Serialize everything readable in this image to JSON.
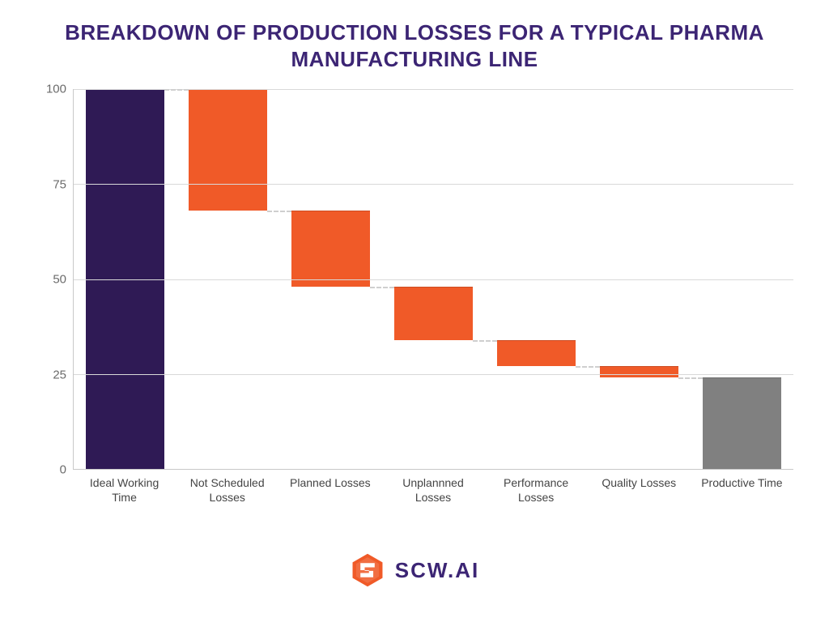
{
  "title": "BREAKDOWN OF PRODUCTION LOSSES FOR A TYPICAL PHARMA MANUFACTURING LINE",
  "title_color": "#3c2574",
  "title_fontsize": 26,
  "chart": {
    "type": "waterfall",
    "ylim": [
      0,
      100
    ],
    "ytick_step": 25,
    "yticks": [
      0,
      25,
      50,
      75,
      100
    ],
    "grid_color": "#d9d9d9",
    "axis_color": "#c8c8c8",
    "background_color": "#ffffff",
    "bar_width_pct": 76,
    "connector_color": "#cfcfcf",
    "connector_dash": "2px dashed",
    "label_fontsize": 14,
    "ylabel_fontsize": 15,
    "ylabel_color": "#6b6b6b",
    "xlabel_color": "#444444",
    "categories": [
      {
        "label": "Ideal Working Time",
        "start": 0,
        "end": 100,
        "color": "#2f1a55"
      },
      {
        "label": "Not Scheduled Losses",
        "start": 68,
        "end": 100,
        "color": "#f05a28"
      },
      {
        "label": "Planned Losses",
        "start": 48,
        "end": 68,
        "color": "#f05a28"
      },
      {
        "label": "Unplannned Losses",
        "start": 34,
        "end": 48,
        "color": "#f05a28"
      },
      {
        "label": "Performance Losses",
        "start": 27,
        "end": 34,
        "color": "#f05a28"
      },
      {
        "label": "Quality Losses",
        "start": 24,
        "end": 27,
        "color": "#f05a28"
      },
      {
        "label": "Productive Time",
        "start": 0,
        "end": 24,
        "color": "#808080"
      }
    ]
  },
  "logo": {
    "text": "SCW.AI",
    "text_color": "#3c2574",
    "icon_color": "#f05a28",
    "icon_size": 44
  }
}
